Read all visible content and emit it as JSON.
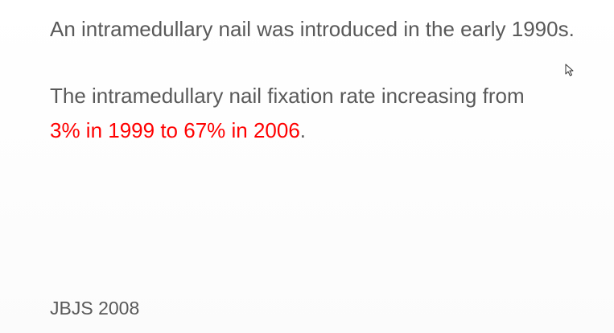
{
  "slide": {
    "line1": "An intramedullary nail was introduced in the early 1990s.",
    "line2": "The intramedullary nail fixation rate increasing from",
    "line3_highlight": "3% in 1999 to 67% in 2006",
    "line3_tail": ".",
    "source": "JBJS 2008",
    "highlight_color": "#ff0000",
    "text_color": "#595959"
  },
  "cursor": {
    "icon": "arrow-pointer-icon"
  }
}
